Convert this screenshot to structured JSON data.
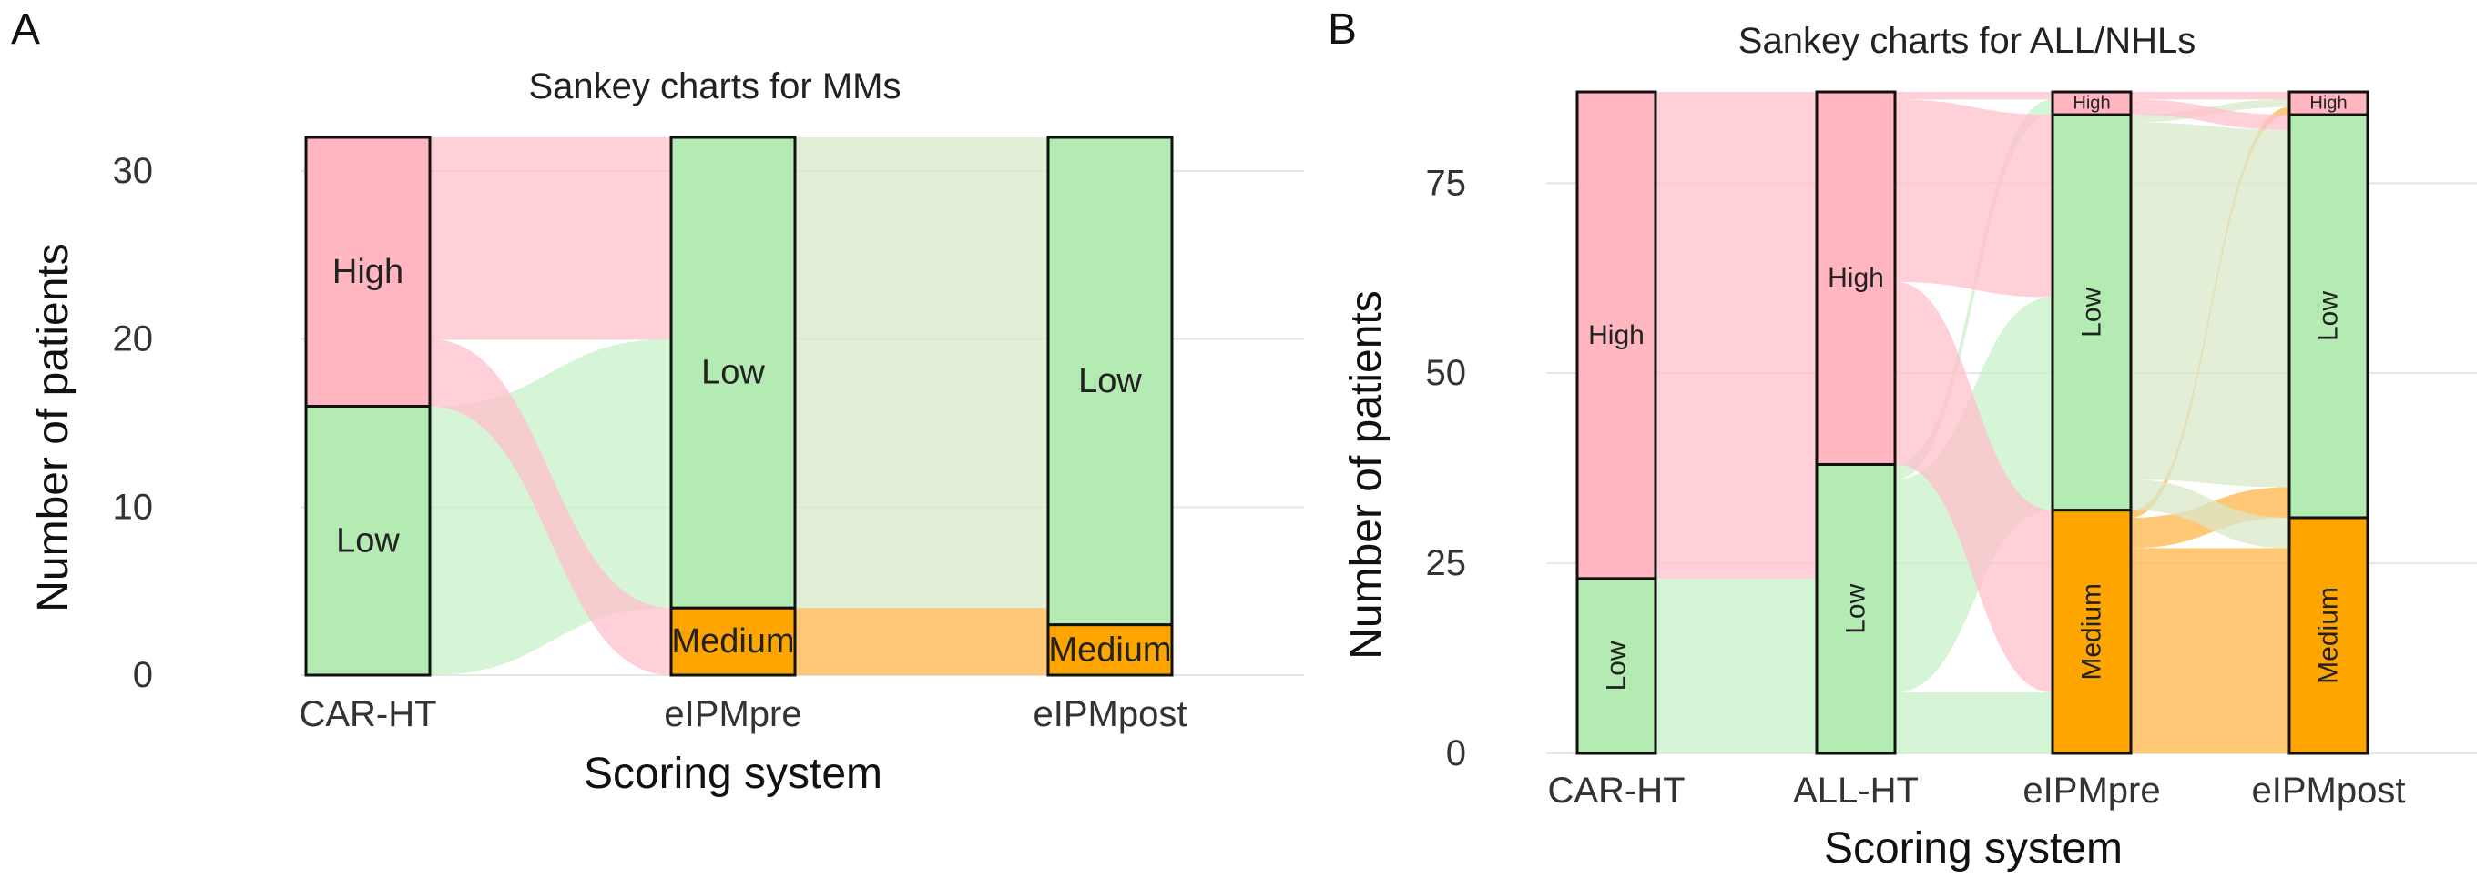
{
  "panels": {
    "a": {
      "letter": "A"
    },
    "b": {
      "letter": "B"
    }
  },
  "colors": {
    "high": "#ffb6c1",
    "low": "#b3ebb3",
    "medium": "#ffa500",
    "flow_high": "#ffc0cb",
    "flow_low": "#c8f0c8",
    "flow_medium": "#ffb64a",
    "flow_mixed": "#d8e8c8"
  },
  "chart_data": [
    {
      "type": "sankey",
      "title": "Sankey charts for MMs",
      "xlabel": "Scoring system",
      "ylabel": "Number of patients",
      "ylim": [
        0,
        32
      ],
      "yticks": [
        0,
        10,
        20,
        30
      ],
      "stages": [
        "CAR-HT",
        "eIPMpre",
        "eIPMpost"
      ],
      "nodes": [
        [
          {
            "label": "Low",
            "value": 16,
            "color": "low"
          },
          {
            "label": "High",
            "value": 16,
            "color": "high"
          }
        ],
        [
          {
            "label": "Medium",
            "value": 4,
            "color": "medium"
          },
          {
            "label": "Low",
            "value": 28,
            "color": "low"
          }
        ],
        [
          {
            "label": "Medium",
            "value": 3,
            "color": "medium"
          },
          {
            "label": "Low",
            "value": 29,
            "color": "low"
          }
        ]
      ],
      "flows": [
        {
          "from_stage": 0,
          "from": "Low",
          "to": "Low",
          "value": 16,
          "color": "flow_low"
        },
        {
          "from_stage": 0,
          "from": "High",
          "to": "Medium",
          "value": 4,
          "color": "flow_high"
        },
        {
          "from_stage": 0,
          "from": "High",
          "to": "Low",
          "value": 12,
          "color": "flow_high"
        },
        {
          "from_stage": 1,
          "from": "Medium",
          "to": "Medium",
          "value": 3,
          "color": "flow_medium"
        },
        {
          "from_stage": 1,
          "from": "Medium",
          "to": "Low",
          "value": 1,
          "color": "flow_medium"
        },
        {
          "from_stage": 1,
          "from": "Low",
          "to": "Low",
          "value": 28,
          "color": "flow_mixed"
        }
      ]
    },
    {
      "type": "sankey",
      "title": "Sankey charts for ALL/NHLs",
      "xlabel": "Scoring system",
      "ylabel": "Number of patients",
      "ylim": [
        0,
        87
      ],
      "yticks": [
        0,
        25,
        50,
        75
      ],
      "stages": [
        "CAR-HT",
        "ALL-HT",
        "eIPMpre",
        "eIPMpost"
      ],
      "nodes": [
        [
          {
            "label": "Low",
            "value": 23,
            "color": "low"
          },
          {
            "label": "High",
            "value": 64,
            "color": "high"
          }
        ],
        [
          {
            "label": "Low",
            "value": 38,
            "color": "low"
          },
          {
            "label": "High",
            "value": 49,
            "color": "high"
          }
        ],
        [
          {
            "label": "Medium",
            "value": 32,
            "color": "medium"
          },
          {
            "label": "Low",
            "value": 52,
            "color": "low"
          },
          {
            "label": "High",
            "value": 3,
            "color": "high"
          }
        ],
        [
          {
            "label": "Medium",
            "value": 31,
            "color": "medium"
          },
          {
            "label": "Low",
            "value": 53,
            "color": "low"
          },
          {
            "label": "High",
            "value": 3,
            "color": "high"
          }
        ]
      ],
      "flows": [
        {
          "from_stage": 0,
          "from": "Low",
          "to": "Low",
          "value": 23,
          "color": "flow_low"
        },
        {
          "from_stage": 0,
          "from": "High",
          "to": "Low",
          "value": 15,
          "color": "flow_high"
        },
        {
          "from_stage": 0,
          "from": "High",
          "to": "High",
          "value": 49,
          "color": "flow_high"
        },
        {
          "from_stage": 1,
          "from": "Low",
          "to": "Medium",
          "value": 8,
          "color": "flow_low"
        },
        {
          "from_stage": 1,
          "from": "Low",
          "to": "Low",
          "value": 28,
          "color": "flow_low"
        },
        {
          "from_stage": 1,
          "from": "Low",
          "to": "High",
          "value": 2,
          "color": "flow_low"
        },
        {
          "from_stage": 1,
          "from": "High",
          "to": "Medium",
          "value": 24,
          "color": "flow_high"
        },
        {
          "from_stage": 1,
          "from": "High",
          "to": "Low",
          "value": 24,
          "color": "flow_high"
        },
        {
          "from_stage": 1,
          "from": "High",
          "to": "High",
          "value": 1,
          "color": "flow_high"
        },
        {
          "from_stage": 2,
          "from": "Medium",
          "to": "Medium",
          "value": 27,
          "color": "flow_medium"
        },
        {
          "from_stage": 2,
          "from": "Medium",
          "to": "Low",
          "value": 4,
          "color": "flow_medium"
        },
        {
          "from_stage": 2,
          "from": "Medium",
          "to": "High",
          "value": 1,
          "color": "flow_medium"
        },
        {
          "from_stage": 2,
          "from": "Low",
          "to": "Medium",
          "value": 4,
          "color": "flow_mixed"
        },
        {
          "from_stage": 2,
          "from": "Low",
          "to": "Low",
          "value": 47,
          "color": "flow_mixed"
        },
        {
          "from_stage": 2,
          "from": "Low",
          "to": "High",
          "value": 1,
          "color": "flow_mixed"
        },
        {
          "from_stage": 2,
          "from": "High",
          "to": "Low",
          "value": 2,
          "color": "flow_high"
        },
        {
          "from_stage": 2,
          "from": "High",
          "to": "High",
          "value": 1,
          "color": "flow_high"
        }
      ]
    }
  ]
}
